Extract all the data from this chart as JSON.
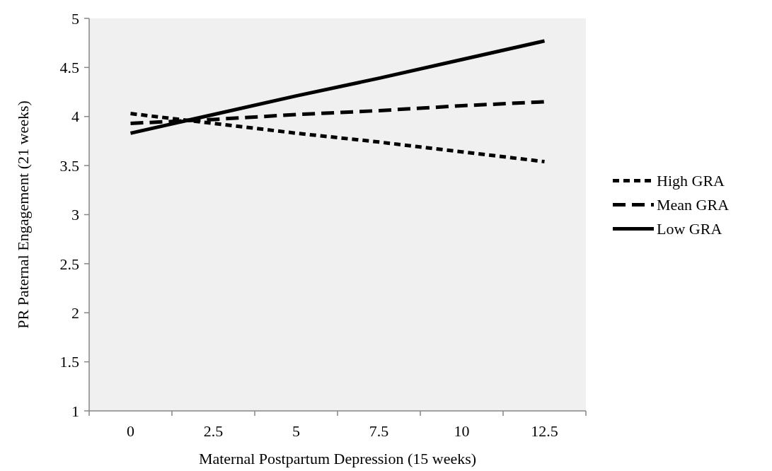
{
  "chart_data": {
    "type": "line",
    "xlabel": "Maternal Postpartum Depression (15 weeks)",
    "ylabel": "PR Paternal Engagement (21 weeks)",
    "categories": [
      "0",
      "2.5",
      "5",
      "7.5",
      "10",
      "12.5"
    ],
    "series": [
      {
        "name": "High GRA",
        "color": "#000000",
        "line_style": "dotted",
        "values": [
          4.03,
          3.93,
          3.83,
          3.74,
          3.64,
          3.54
        ]
      },
      {
        "name": "Mean GRA",
        "color": "#000000",
        "line_style": "dashed",
        "values": [
          3.93,
          3.97,
          4.02,
          4.06,
          4.11,
          4.15
        ]
      },
      {
        "name": "Low GRA",
        "color": "#000000",
        "line_style": "solid",
        "values": [
          3.83,
          4.02,
          4.21,
          4.39,
          4.58,
          4.77
        ]
      }
    ],
    "ylim": [
      1,
      5
    ],
    "yticks": [
      1,
      1.5,
      2,
      2.5,
      3,
      3.5,
      4,
      4.5,
      5
    ],
    "grid": false,
    "legend": "right",
    "marker": "none"
  }
}
